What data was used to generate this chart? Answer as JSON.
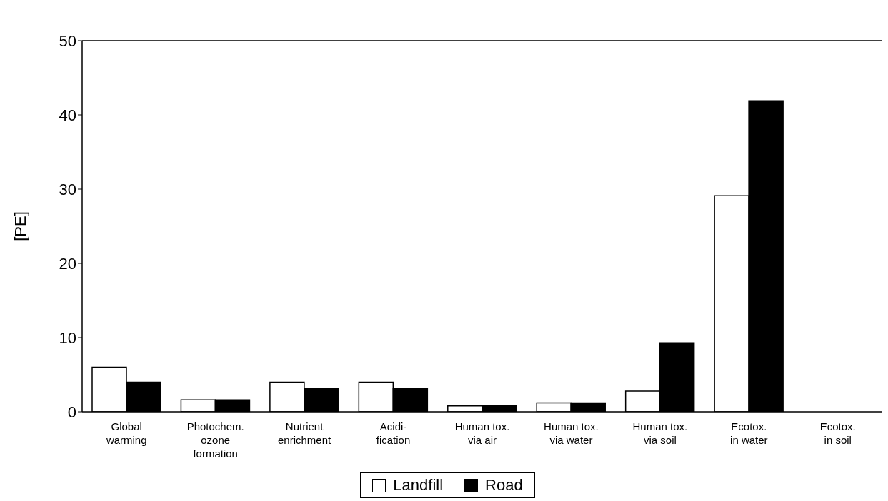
{
  "chart_data": {
    "type": "bar",
    "ylabel": "[PE]",
    "categories": [
      "Global\nwarming",
      "Photochem.\nozone\nformation",
      "Nutrient\nenrichment",
      "Acidi-\nfication",
      "Human tox.\nvia air",
      "Human tox.\nvia water",
      "Human tox.\nvia soil",
      "Ecotox.\nin water",
      "Ecotox.\nin soil"
    ],
    "series": [
      {
        "name": "Landfill",
        "color": "#ffffff",
        "values": [
          6.0,
          1.6,
          4.0,
          4.0,
          0.8,
          1.2,
          2.8,
          29.1,
          0
        ]
      },
      {
        "name": "Road",
        "color": "#000000",
        "values": [
          4.0,
          1.6,
          3.2,
          3.1,
          0.8,
          1.2,
          9.3,
          41.9,
          0
        ]
      }
    ],
    "ylim": [
      0,
      50
    ],
    "yticks": [
      0,
      10,
      20,
      30,
      40,
      50
    ],
    "grid": false,
    "legend": "bottom"
  }
}
